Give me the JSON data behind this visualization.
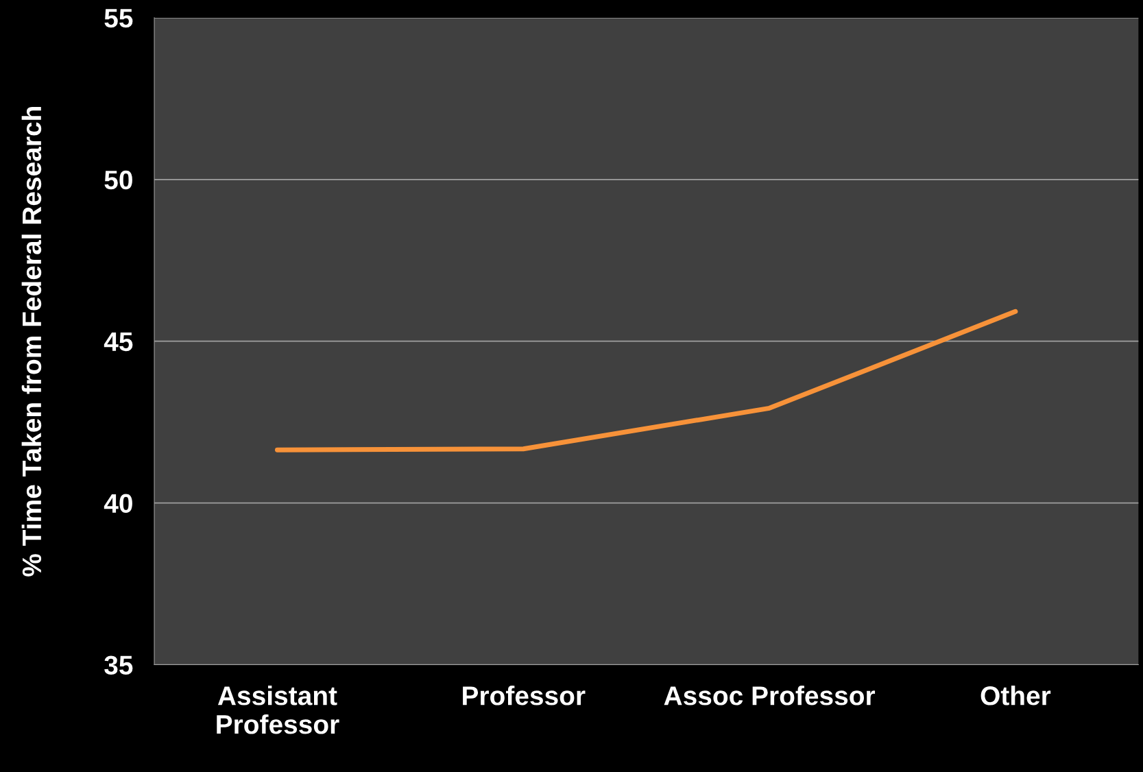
{
  "chart_data": {
    "type": "line",
    "ylabel": "% Time Taken from Federal Research",
    "categories": [
      "Assistant\nProfessor",
      "Professor",
      "Assoc Professor",
      "Other"
    ],
    "series": [
      {
        "color": "#f79239",
        "values": [
          41.64,
          41.67,
          42.93,
          45.92
        ]
      }
    ],
    "ylim": [
      35,
      55
    ],
    "yticks": [
      35,
      40,
      45,
      50,
      55
    ],
    "grid": "y",
    "marker": "none",
    "line_style": "solid"
  }
}
